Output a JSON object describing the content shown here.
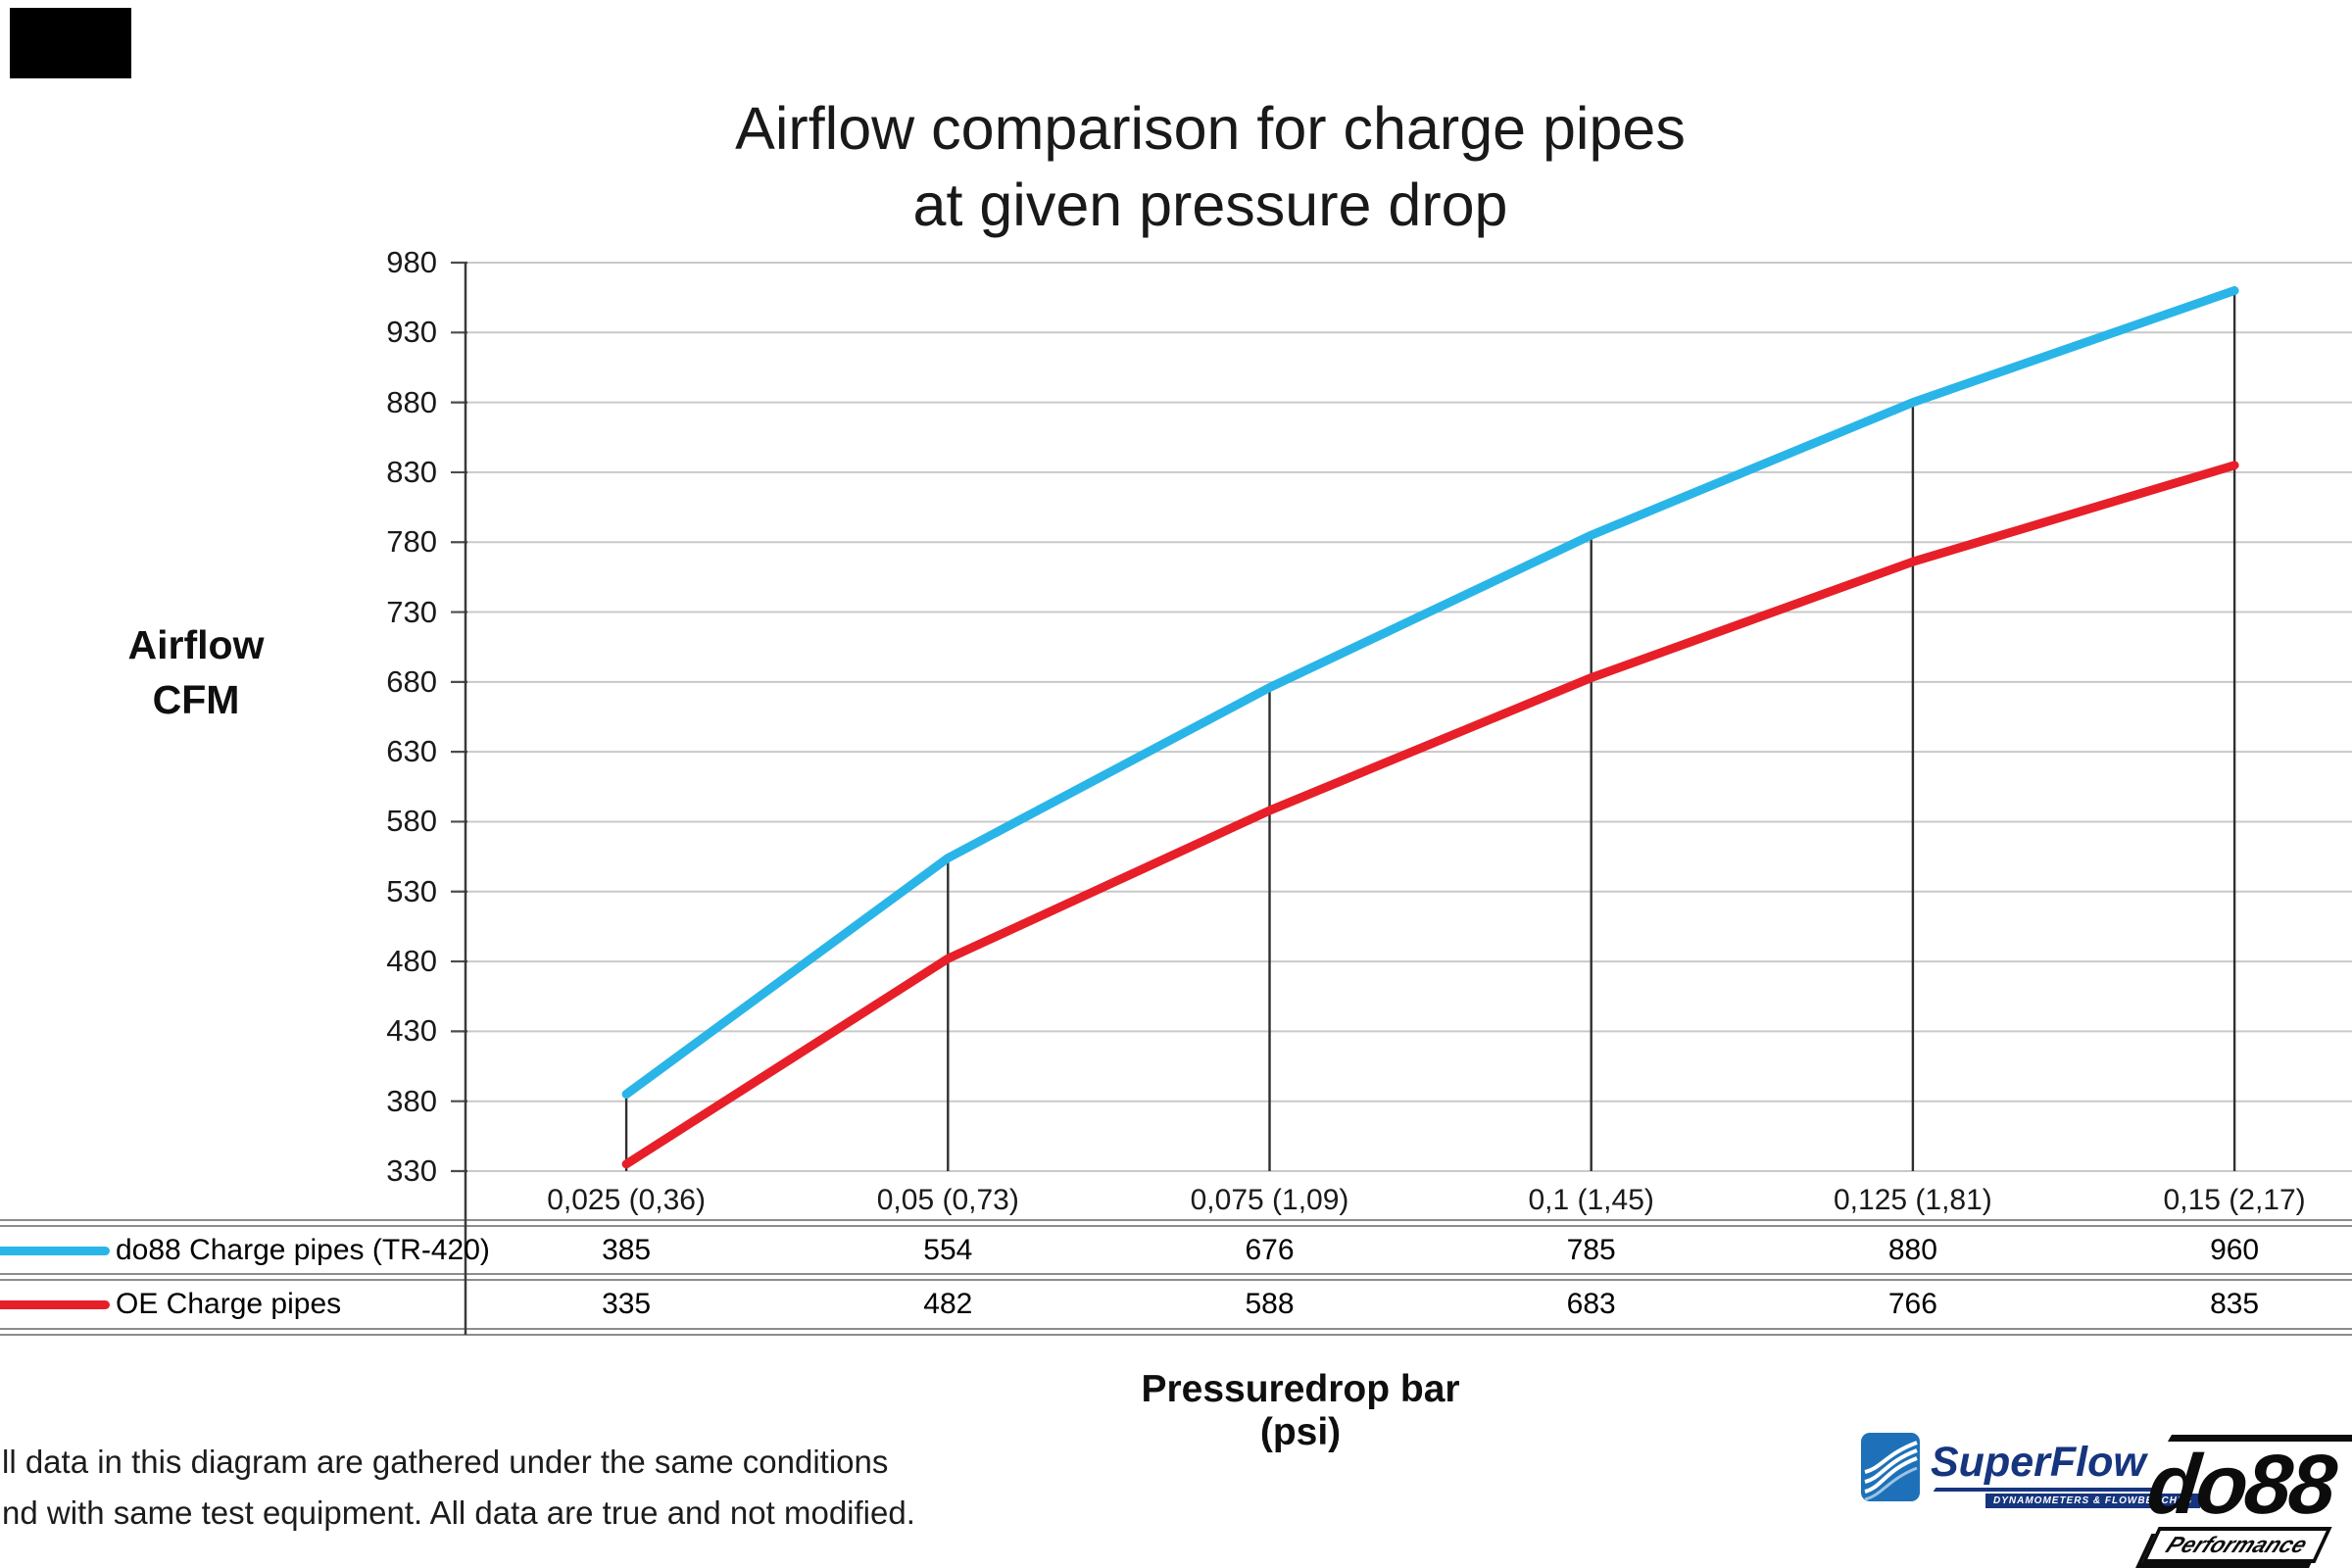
{
  "title": {
    "line1": "Airflow comparison for charge pipes",
    "line2": "at given pressure drop"
  },
  "y_axis": {
    "title_line1": "Airflow",
    "title_line2": "CFM"
  },
  "x_axis": {
    "title": "Pressuredrop bar (psi)"
  },
  "chart_data": {
    "type": "line",
    "title": "Airflow comparison for charge pipes at given pressure drop",
    "xlabel": "Pressuredrop bar (psi)",
    "ylabel": "Airflow CFM",
    "categories": [
      "0,025 (0,36)",
      "0,05 (0,73)",
      "0,075 (1,09)",
      "0,1 (1,45)",
      "0,125 (1,81)",
      "0,15 (2,17)"
    ],
    "series": [
      {
        "name": "do88 Charge pipes (TR-420)",
        "color": "#2ab5e8",
        "values": [
          385,
          554,
          676,
          785,
          880,
          960
        ]
      },
      {
        "name": "OE Charge pipes",
        "color": "#e71f28",
        "values": [
          335,
          482,
          588,
          683,
          766,
          835
        ]
      }
    ],
    "ylim": [
      330,
      980
    ],
    "ytick_step": 50,
    "yticks": [
      980,
      930,
      880,
      830,
      780,
      730,
      680,
      630,
      580,
      530,
      480,
      430,
      380,
      330
    ],
    "grid": "horizontal gridlines, vertical droplines at each data point",
    "legend_position": "table rows below chart, swatches at left"
  },
  "footnote": {
    "line1": "ll data in this diagram are gathered under the same conditions",
    "line2": "nd with same test equipment. All data are true and not modified."
  },
  "logos": {
    "superflow": {
      "name": "SuperFlow",
      "tagline": "DYNAMOMETERS & FLOWBENCHES",
      "color": "#16357e"
    },
    "do88": {
      "name": "do88",
      "sub": "Performance",
      "color": "#0c0c0c"
    }
  }
}
